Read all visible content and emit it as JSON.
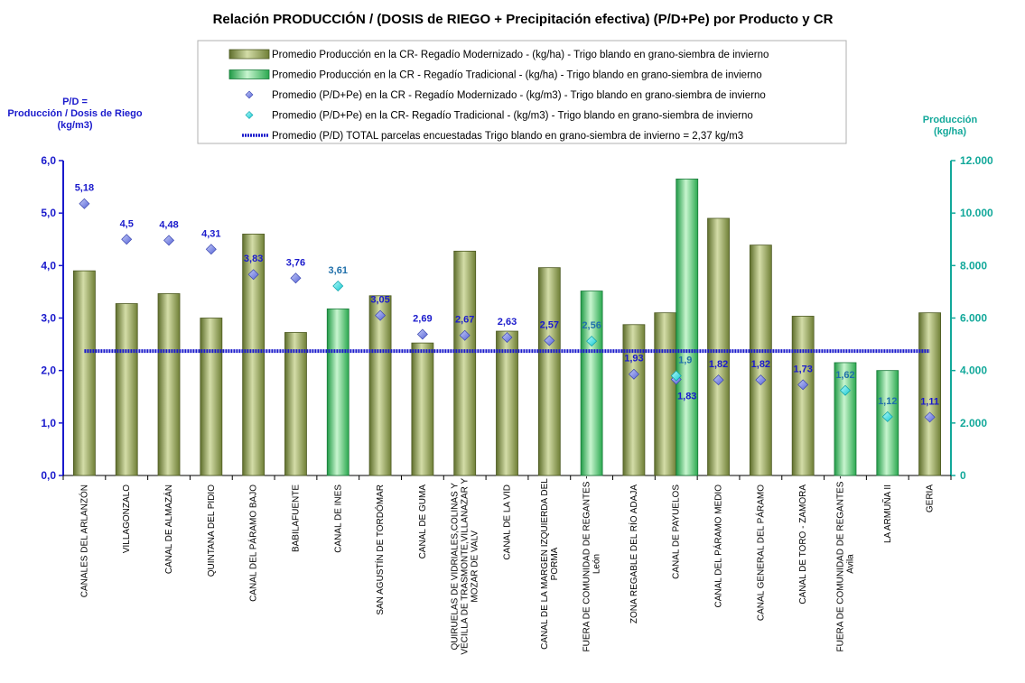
{
  "chart_data": {
    "type": "bar",
    "title": "Relación PRODUCCIÓN / (DOSIS de RIEGO + Precipitación efectiva)  (P/D+Pe) por Producto y CR",
    "ylabel_left": [
      "P/D =",
      "Producción / Dosis de Riego",
      "(kg/m3)"
    ],
    "ylabel_right": [
      "Producción",
      "(kg/ha)"
    ],
    "ylim_left": [
      0,
      6
    ],
    "ylim_right": [
      0,
      12000
    ],
    "yticks_left": [
      "0,0",
      "1,0",
      "2,0",
      "3,0",
      "4,0",
      "5,0",
      "6,0"
    ],
    "yticks_right": [
      "0",
      "2.000",
      "4.000",
      "6.000",
      "8.000",
      "10.000",
      "12.000"
    ],
    "grid": false,
    "legend_position": "top",
    "colors": {
      "bar_modernizado": "#9aab5e",
      "bar_tradicional": "#5fcf7a",
      "marker_modernizado": "#7f8fe6",
      "marker_tradicional": "#33e0e0",
      "avg_line": "#1a1acc",
      "left_axis": "#1a1acc",
      "right_axis": "#12a89a"
    },
    "legend": [
      {
        "key": "bar_mod",
        "label": "Promedio Producción en la CR- Regadío Modernizado -   (kg/ha) - Trigo blando en grano-siembra de invierno"
      },
      {
        "key": "bar_trad",
        "label": "Promedio Producción en la CR - Regadío Tradicional -  (kg/ha) - Trigo blando en grano-siembra de invierno"
      },
      {
        "key": "pt_mod",
        "label": "Promedio (P/D+Pe) en la CR - Regadío Modernizado - (kg/m3) - Trigo blando en grano-siembra de invierno"
      },
      {
        "key": "pt_trad",
        "label": "Promedio (P/D+Pe) en la CR- Regadío Tradicional - (kg/m3) - Trigo blando en grano-siembra de invierno"
      },
      {
        "key": "avg",
        "label": "Promedio (P/D) TOTAL parcelas encuestadas Trigo blando en grano-siembra de invierno = 2,37 kg/m3"
      }
    ],
    "average_pd": 2.37,
    "categories": [
      [
        "CANALES DEL ARLANZÓN"
      ],
      [
        "VILLAGONZALO"
      ],
      [
        "CANAL DE ALMAZÁN"
      ],
      [
        "QUINTANA DEL PIDIO"
      ],
      [
        "CANAL DEL PÁRAMO BAJO"
      ],
      [
        "BABILAFUENTE"
      ],
      [
        "CANAL DE INES"
      ],
      [
        "SAN AGUSTÍN DE TORDÓMAR"
      ],
      [
        "CANAL DE GUMA"
      ],
      [
        "QUIRUELAS DE VIDRIALES,COLINAS Y",
        "VECILLA DE TRASMONTE,VILLANAZAR Y",
        "MOZAR DE VALV"
      ],
      [
        "CANAL DE LA VID"
      ],
      [
        "CANAL DE LA MARGEN IZQUIERDA DEL",
        "PORMA"
      ],
      [
        "FUERA DE COMUNIDAD DE REGANTES -",
        "León"
      ],
      [
        "ZONA REGABLE DEL RÍO ADAJA"
      ],
      [
        "CANAL DE PAYUELOS"
      ],
      [
        "CANAL DEL PÁRAMO MEDIO"
      ],
      [
        "CANAL GENERAL DEL PÁRAMO"
      ],
      [
        "CANAL DE TORO - ZAMORA"
      ],
      [
        "FUERA DE COMUNIDAD DE REGANTES -",
        "Avila"
      ],
      [
        "LA ARMUÑA II"
      ],
      [
        "GERIA"
      ]
    ],
    "series": [
      {
        "kind": "bar_mod",
        "values": [
          7800,
          6550,
          6930,
          6000,
          9200,
          5450,
          null,
          6850,
          5050,
          8550,
          5500,
          7920,
          null,
          5750,
          6200,
          9800,
          8780,
          6070,
          null,
          null,
          6200
        ]
      },
      {
        "kind": "bar_trad",
        "values": [
          null,
          null,
          null,
          null,
          null,
          null,
          6350,
          null,
          null,
          null,
          null,
          null,
          7030,
          null,
          11300,
          null,
          null,
          null,
          4300,
          4000,
          null
        ]
      },
      {
        "kind": "pt_mod",
        "values": [
          5.18,
          4.5,
          4.48,
          4.31,
          3.83,
          3.76,
          null,
          3.05,
          2.69,
          2.67,
          2.63,
          2.57,
          null,
          1.93,
          1.83,
          1.82,
          1.82,
          1.73,
          null,
          null,
          1.11
        ]
      },
      {
        "kind": "pt_trad",
        "values": [
          null,
          null,
          null,
          null,
          null,
          null,
          3.61,
          null,
          null,
          null,
          null,
          null,
          2.56,
          null,
          1.9,
          null,
          null,
          null,
          1.62,
          1.12,
          null
        ]
      }
    ],
    "point_labels_mod": [
      "5,18",
      "4,5",
      "4,48",
      "4,31",
      "3,83",
      "3,76",
      null,
      "3,05",
      "2,69",
      "2,67",
      "2,63",
      "2,57",
      null,
      "1,93",
      "1,83",
      "1,82",
      "1,82",
      "1,73",
      null,
      null,
      "1,11"
    ],
    "point_labels_trad": [
      null,
      null,
      null,
      null,
      null,
      null,
      "3,61",
      null,
      null,
      null,
      null,
      null,
      "2,56",
      null,
      "1,9",
      null,
      null,
      null,
      "1,62",
      "1,12",
      null
    ]
  }
}
